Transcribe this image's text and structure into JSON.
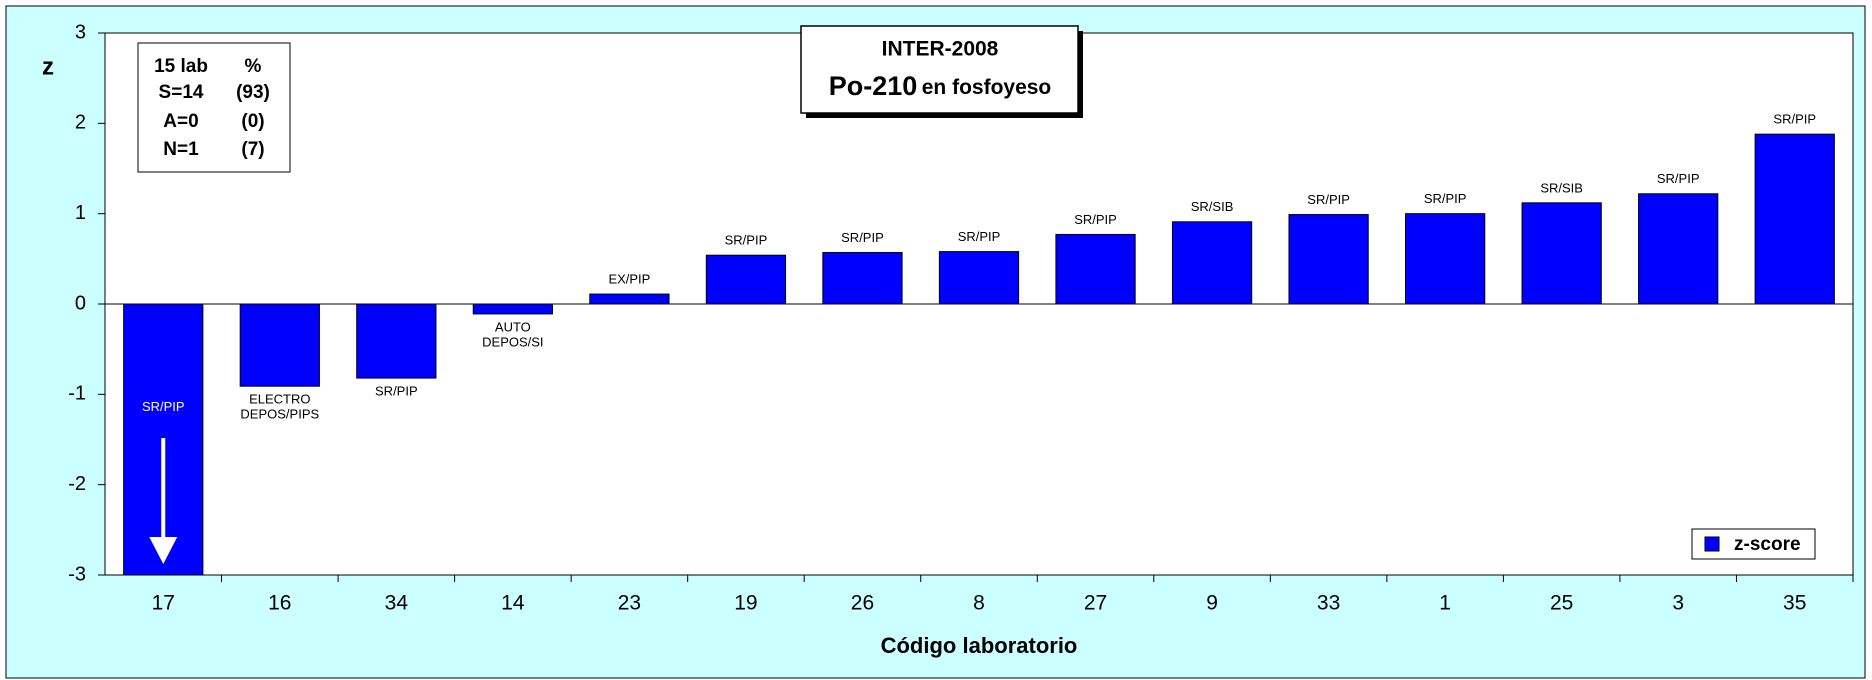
{
  "chart_data": {
    "type": "bar",
    "title": "INTER-2008",
    "subtitle_main": "Po-210",
    "subtitle_rest": "en fosfoyeso",
    "ylabel": "z",
    "xlabel": "Código laboratorio",
    "categories": [
      "17",
      "16",
      "34",
      "14",
      "23",
      "19",
      "26",
      "8",
      "27",
      "9",
      "33",
      "1",
      "25",
      "3",
      "35"
    ],
    "series": [
      {
        "name": "z-score",
        "color": "#0000ff",
        "values": [
          -3,
          -0.91,
          -0.82,
          -0.11,
          0.11,
          0.54,
          0.57,
          0.58,
          0.77,
          0.91,
          0.99,
          1.0,
          1.12,
          1.22,
          1.88
        ]
      }
    ],
    "methods": [
      [
        "SR/PIP"
      ],
      [
        "ELECTRO",
        "DEPOS/PIPS"
      ],
      [
        "SR/PIP"
      ],
      [
        "AUTO",
        "DEPOS/SI"
      ],
      [
        "EX/PIP"
      ],
      [
        "SR/PIP"
      ],
      [
        "SR/PIP"
      ],
      [
        "SR/PIP"
      ],
      [
        "SR/PIP"
      ],
      [
        "SR/SIB"
      ],
      [
        "SR/PIP"
      ],
      [
        "SR/PIP"
      ],
      [
        "SR/SIB"
      ],
      [
        "SR/PIP"
      ],
      [
        "SR/PIP"
      ]
    ],
    "stats": [
      [
        "15 lab",
        "%"
      ],
      [
        "S=14",
        "(93)"
      ],
      [
        "A=0",
        "(0)"
      ],
      [
        "N=1",
        "(7)"
      ]
    ],
    "ylim": [
      -3,
      3
    ],
    "yticks": [
      -3,
      -2,
      -1,
      0,
      1,
      2,
      3
    ],
    "legend": "bottom-right"
  }
}
